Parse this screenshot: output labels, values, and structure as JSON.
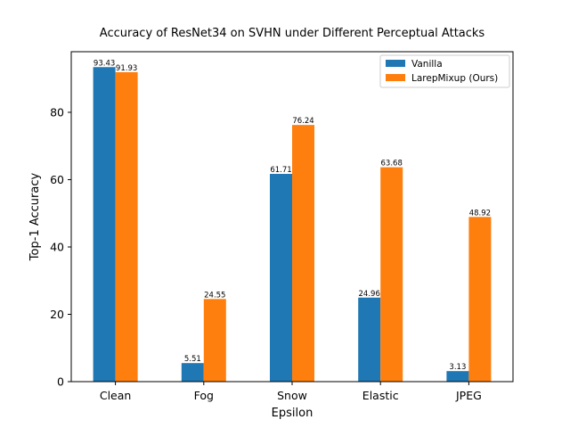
{
  "chart_data": {
    "type": "bar",
    "title": "Accuracy of ResNet34 on SVHN under Different Perceptual Attacks",
    "xlabel": "Epsilon",
    "ylabel": "Top-1 Accuracy",
    "categories": [
      "Clean",
      "Fog",
      "Snow",
      "Elastic",
      "JPEG"
    ],
    "ylim": [
      0,
      98
    ],
    "yticks": [
      0,
      20,
      40,
      60,
      80
    ],
    "series": [
      {
        "name": "Vanilla",
        "color": "#1f77b4",
        "values": [
          93.43,
          5.51,
          61.71,
          24.96,
          3.13
        ],
        "labels": [
          "93.43",
          "5.51",
          "61.71",
          "24.96",
          "3.13"
        ]
      },
      {
        "name": "LarepMixup (Ours)",
        "color": "#ff7f0e",
        "values": [
          91.93,
          24.55,
          76.24,
          63.68,
          48.92
        ],
        "labels": [
          "91.93",
          "24.55",
          "76.24",
          "63.68",
          "48.92"
        ]
      }
    ],
    "legend_position": "top-right",
    "grid": false
  }
}
